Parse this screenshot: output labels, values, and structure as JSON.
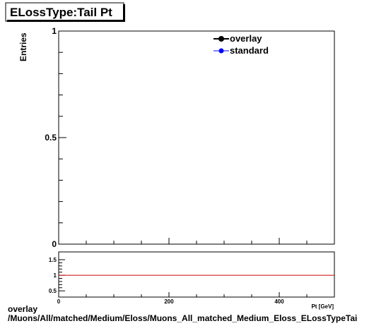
{
  "title": "ELossType:Tail Pt",
  "footer": {
    "line1": "overlay",
    "line2": "/Muons/All/matched/Medium/Eloss/Muons_All_matched_Medium_Eloss_ELossTypeTai"
  },
  "chart_data": [
    {
      "type": "line",
      "title": "ELossType:Tail Pt",
      "ylabel": "Entries",
      "xlim": [
        0,
        500
      ],
      "ylim": [
        0,
        1
      ],
      "yticks": [
        {
          "value": 0,
          "label": "0"
        },
        {
          "value": 0.5,
          "label": "0.5"
        },
        {
          "value": 1,
          "label": "1"
        }
      ],
      "grid": false,
      "legend_position": "top-right",
      "series": [
        {
          "name": "overlay",
          "color": "#000000",
          "marker": "circle",
          "values": []
        },
        {
          "name": "standard",
          "color": "#0000ff",
          "marker": "circle",
          "values": []
        }
      ]
    },
    {
      "type": "line",
      "xlabel": "Pt [GeV]",
      "xlim": [
        0,
        500
      ],
      "ylim": [
        0.3,
        1.75
      ],
      "xticks": [
        {
          "value": 0,
          "label": "0"
        },
        {
          "value": 200,
          "label": "200"
        },
        {
          "value": 400,
          "label": "400"
        }
      ],
      "yticks": [
        {
          "value": 0.5,
          "label": "0.5"
        },
        {
          "value": 1,
          "label": "1"
        },
        {
          "value": 1.5,
          "label": "1.5"
        }
      ],
      "reference_line": {
        "value": 1,
        "color": "#cc0000"
      },
      "series": []
    }
  ]
}
